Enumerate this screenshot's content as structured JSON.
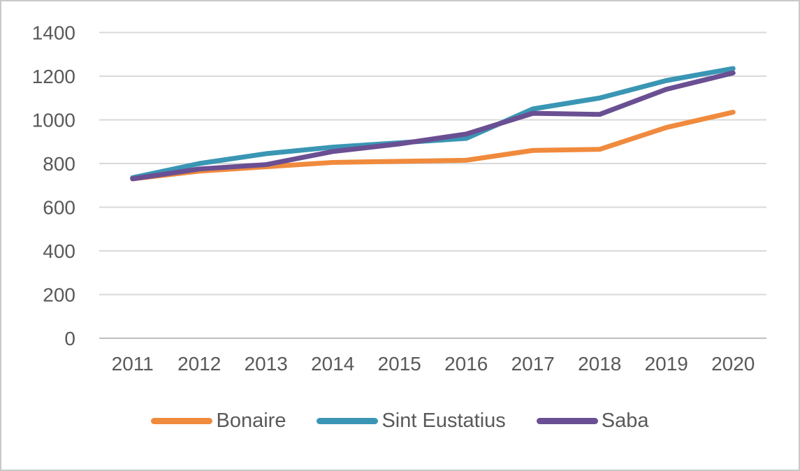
{
  "chart_data": {
    "type": "line",
    "title": "",
    "xlabel": "",
    "ylabel": "",
    "categories": [
      "2011",
      "2012",
      "2013",
      "2014",
      "2015",
      "2016",
      "2017",
      "2018",
      "2019",
      "2020"
    ],
    "series": [
      {
        "name": "Bonaire",
        "color": "#F08A3D",
        "values": [
          730,
          765,
          785,
          805,
          810,
          815,
          860,
          865,
          965,
          1035
        ]
      },
      {
        "name": "Sint Eustatius",
        "color": "#3A96B4",
        "values": [
          735,
          800,
          845,
          875,
          895,
          915,
          1050,
          1100,
          1180,
          1235
        ]
      },
      {
        "name": "Saba",
        "color": "#6A4F93",
        "values": [
          730,
          775,
          795,
          855,
          890,
          935,
          1030,
          1025,
          1140,
          1215
        ]
      }
    ],
    "ylim": [
      0,
      1400
    ],
    "yticks": [
      0,
      200,
      400,
      600,
      800,
      1000,
      1200,
      1400
    ],
    "grid": true,
    "legend_position": "bottom"
  },
  "colors": {
    "tick_label": "#595959",
    "gridline": "#D9D9D9",
    "axis_line": "#BFBFBF",
    "frame_border": "#C9C9C9",
    "background": "#FFFFFF"
  }
}
